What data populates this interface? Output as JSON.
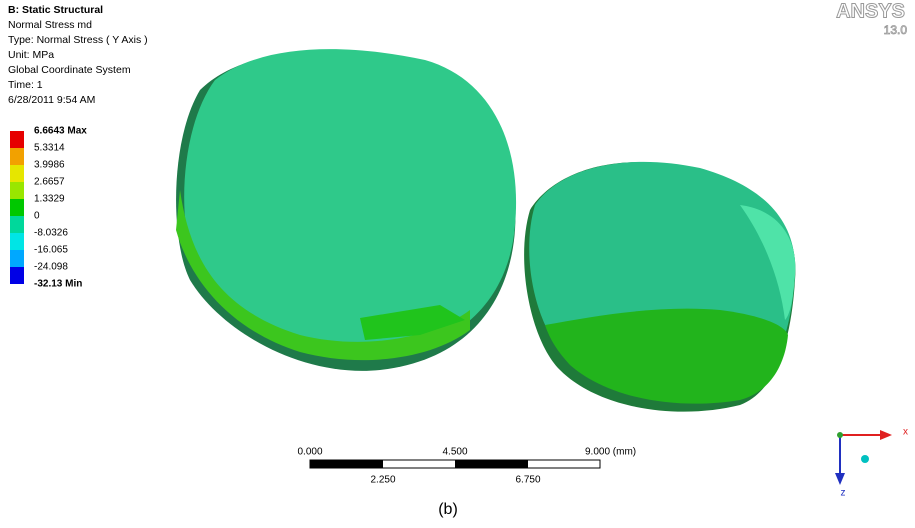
{
  "header": {
    "lines": [
      "B: Static Structural",
      "Normal Stress md",
      "Type: Normal Stress ( Y Axis )",
      "Unit: MPa",
      "Global Coordinate System",
      "Time: 1",
      "6/28/2011 9:54 AM"
    ]
  },
  "legend": {
    "labels": [
      "6.6643 Max",
      "5.3314",
      "3.9986",
      "2.6657",
      "1.3329",
      "0",
      "-8.0326",
      "-16.065",
      "-24.098",
      "-32.13 Min"
    ],
    "colors": [
      "#e60000",
      "#f2a100",
      "#e6e600",
      "#99e600",
      "#00c800",
      "#00d89b",
      "#00e5e5",
      "#00a8ff",
      "#0000e6"
    ]
  },
  "logo": {
    "name": "ANSYS",
    "version": "13.0"
  },
  "scale_bar": {
    "top_labels": [
      "0.000",
      "4.500",
      "9.000 (mm)"
    ],
    "bottom_labels": [
      "2.250",
      "6.750"
    ]
  },
  "triad": {
    "x_label": "x",
    "z_label": "z"
  },
  "caption": "(b)"
}
